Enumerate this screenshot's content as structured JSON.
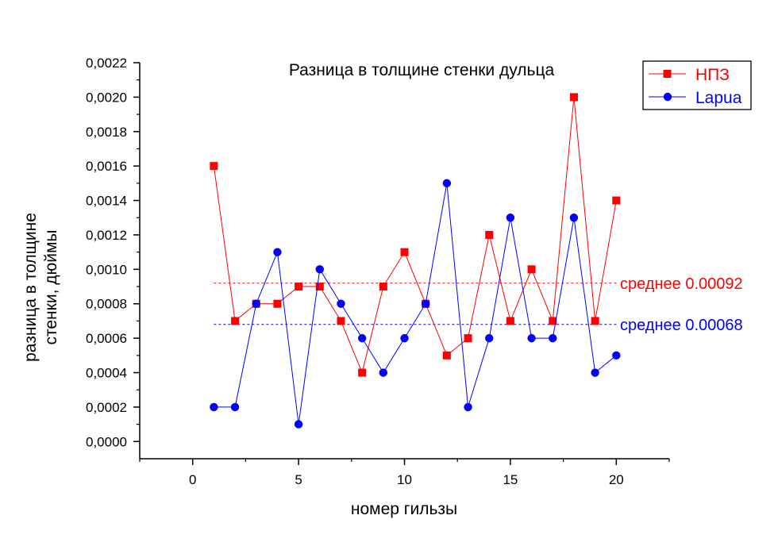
{
  "chart_data": {
    "type": "line",
    "title": "Разница в толщине стенки дульца",
    "xlabel": "номер гильзы",
    "ylabel_lines": [
      "разница в толщине",
      "стенки, дюймы"
    ],
    "xlim": [
      -2.5,
      22.5
    ],
    "ylim": [
      -0.0001,
      0.0022
    ],
    "x_ticks": [
      0,
      5,
      10,
      15,
      20
    ],
    "x_tick_labels": [
      "0",
      "5",
      "10",
      "15",
      "20"
    ],
    "y_ticks": [
      0,
      0.0002,
      0.0004,
      0.0006,
      0.0008,
      0.001,
      0.0012,
      0.0014,
      0.0016,
      0.0018,
      0.002,
      0.0022
    ],
    "y_tick_labels": [
      "0,0000",
      "0,0002",
      "0,0004",
      "0,0006",
      "0,0008",
      "0,0010",
      "0,0012",
      "0,0014",
      "0,0016",
      "0,0018",
      "0,0020",
      "0,0022"
    ],
    "x": [
      1,
      2,
      3,
      4,
      5,
      6,
      7,
      8,
      9,
      10,
      11,
      12,
      13,
      14,
      15,
      16,
      17,
      18,
      19,
      20
    ],
    "series": [
      {
        "name": "НПЗ",
        "color": "#ff0000",
        "marker": "square",
        "values": [
          0.0016,
          0.0007,
          0.0008,
          0.0008,
          0.0009,
          0.0009,
          0.0007,
          0.0004,
          0.0009,
          0.0011,
          0.0008,
          0.0005,
          0.0006,
          0.0012,
          0.0007,
          0.001,
          0.0007,
          0.002,
          0.0007,
          0.0014
        ],
        "mean": 0.00092,
        "mean_label": "среднее 0.00092"
      },
      {
        "name": "Lapua",
        "color": "#0000ff",
        "marker": "circle",
        "values": [
          0.0002,
          0.0002,
          0.0008,
          0.0011,
          0.0001,
          0.001,
          0.0008,
          0.0006,
          0.0004,
          0.0006,
          0.0008,
          0.0015,
          0.0002,
          0.0006,
          0.0013,
          0.0006,
          0.0006,
          0.0013,
          0.0004,
          0.0005
        ],
        "mean": 0.00068,
        "mean_label": "среднее 0.00068"
      }
    ],
    "legend_position": "top-right",
    "grid": false
  }
}
